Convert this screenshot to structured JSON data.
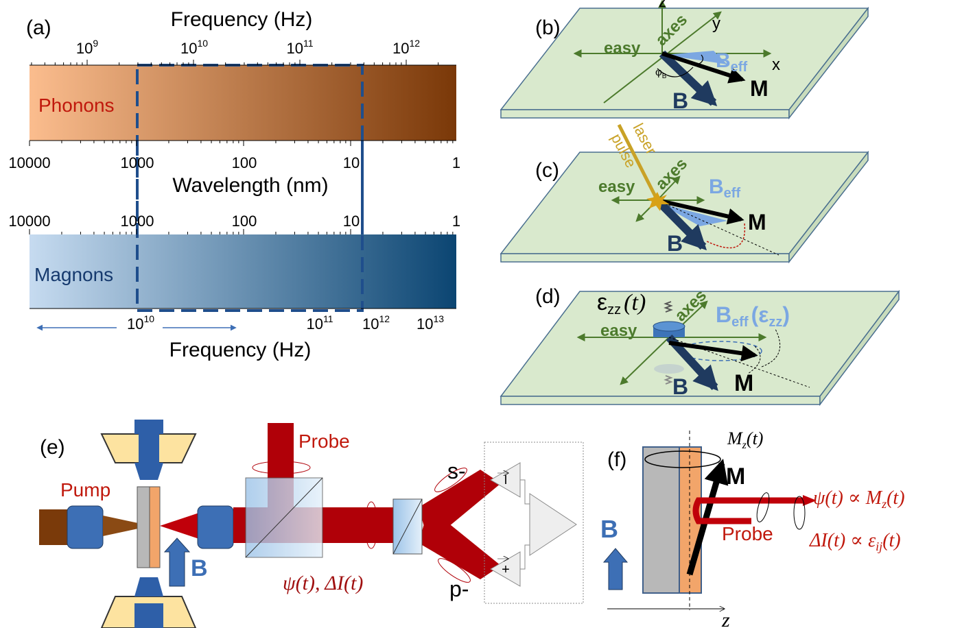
{
  "panel_a": {
    "label": "(a)",
    "top_axis_title": "Frequency (Hz)",
    "top_ticks": [
      {
        "base": "10",
        "exp": "9"
      },
      {
        "base": "10",
        "exp": "10"
      },
      {
        "base": "10",
        "exp": "11"
      },
      {
        "base": "10",
        "exp": "12"
      }
    ],
    "phonons": "Phonons",
    "wavelength_ticks_upper": [
      "10000",
      "1000",
      "100",
      "10",
      "1"
    ],
    "wavelength_title": "Wavelength (nm)",
    "wavelength_ticks_lower": [
      "10000",
      "1000",
      "100",
      "10",
      "1"
    ],
    "magnons": "Magnons",
    "bottom_ticks": [
      {
        "base": "10",
        "exp": "10"
      },
      {
        "base": "10",
        "exp": "11"
      },
      {
        "base": "10",
        "exp": "12"
      },
      {
        "base": "10",
        "exp": "13"
      }
    ],
    "bottom_axis_title": "Frequency (Hz)"
  },
  "panel_b": {
    "label": "(b)",
    "z": "z",
    "y": "y",
    "x": "x",
    "easy": "easy",
    "axes": "axes",
    "b_eff": "B",
    "eff": "eff",
    "m": "M",
    "b": "B",
    "phi": "φ",
    "phi_sub": "B"
  },
  "panel_c": {
    "label": "(c)",
    "laser": "laser",
    "pulse": "pulse",
    "easy": "easy",
    "axes": "axes",
    "b_eff": "B",
    "eff": "eff",
    "m": "M",
    "b": "B"
  },
  "panel_d": {
    "label": "(d)",
    "strain": "ε",
    "strain_sub": "zz",
    "strain_t": "(t)",
    "easy": "easy",
    "axes": "axes",
    "b_eff": "B",
    "eff": "eff",
    "b_eff_arg_open": "(ε",
    "b_eff_arg_sub": "zz",
    "b_eff_arg_close": ")",
    "m": "M",
    "b": "B"
  },
  "panel_e": {
    "label": "(e)",
    "pump": "Pump",
    "probe": "Probe",
    "b": "B",
    "signal": "ψ(t), ΔI(t)",
    "s": "s-",
    "p": "p-",
    "det_minus": "I",
    "det_plus": "+"
  },
  "panel_f": {
    "label": "(f)",
    "mz": "M",
    "mz_sub": "z",
    "mz_t": "(t)",
    "m": "M",
    "probe": "Probe",
    "b": "B",
    "psi": "ψ(t) ∝ M",
    "psi_sub": "z",
    "psi_t": "(t)",
    "di": "ΔI(t) ∝ ε",
    "di_sub": "ij",
    "di_t": "(t)",
    "z": "z"
  }
}
